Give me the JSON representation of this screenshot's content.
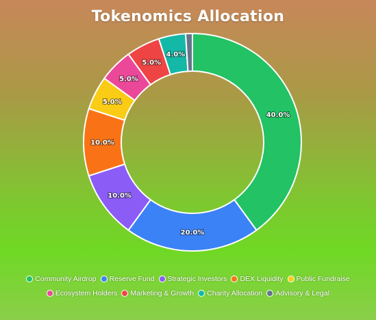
{
  "chart_data": {
    "type": "pie",
    "title": "Tokenomics Allocation",
    "legend_position": "bottom",
    "categories": [
      "Community Airdrop",
      "Reserve Fund",
      "Strategic Investors",
      "DEX Liquidity",
      "Public Fundraise",
      "Ecosystem Holders",
      "Marketing & Growth",
      "Charity Allocation",
      "Advisory & Legal"
    ],
    "values": [
      40,
      20,
      10,
      10,
      5,
      5,
      5,
      4,
      1
    ],
    "labels": [
      "40.0%",
      "20.0%",
      "10.0%",
      "10.0%",
      "5.0%",
      "5.0%",
      "5.0%",
      "4.0%",
      ""
    ],
    "colors": [
      "#22c265",
      "#3b82f6",
      "#8b5cf6",
      "#f97316",
      "#facc15",
      "#ec4899",
      "#ef4444",
      "#14b8a6",
      "#64748b"
    ]
  }
}
